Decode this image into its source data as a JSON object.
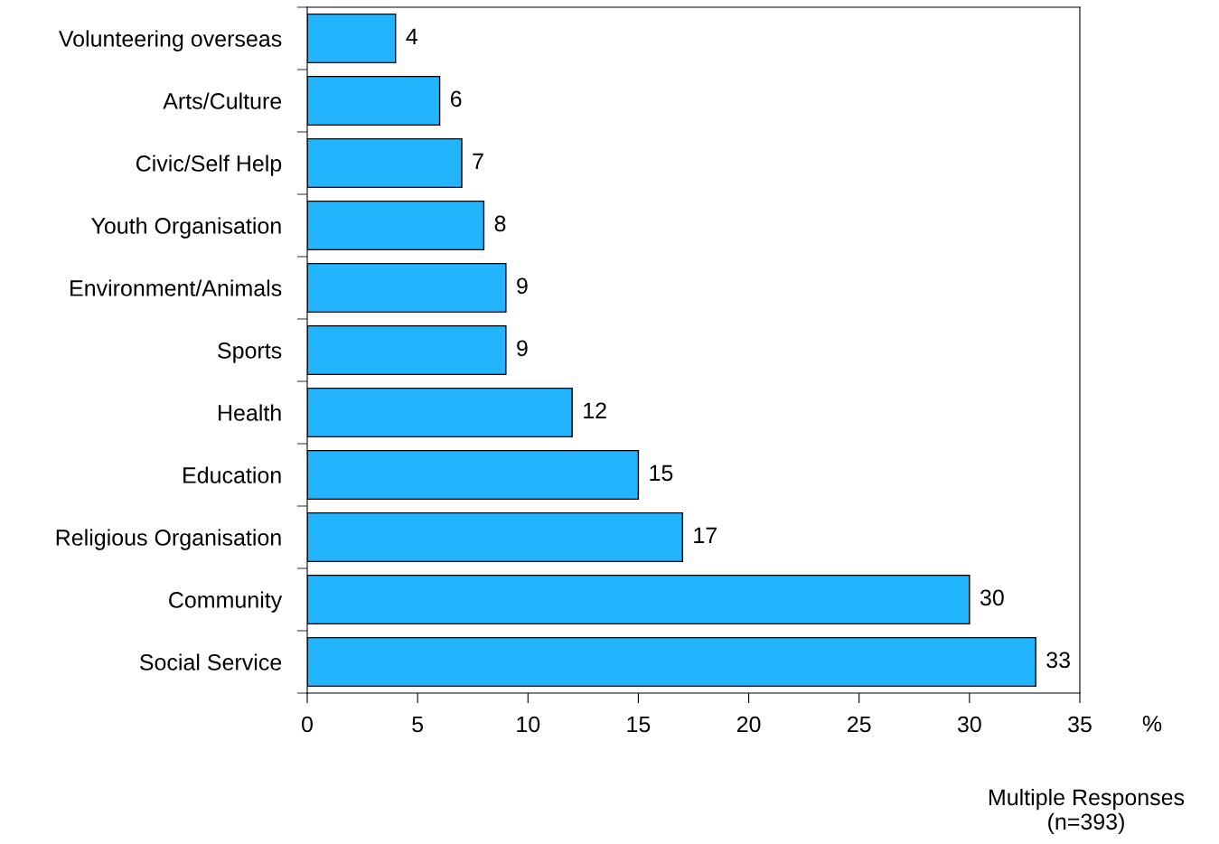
{
  "chart_data": {
    "type": "bar",
    "orientation": "horizontal",
    "categories": [
      "Volunteering overseas",
      "Arts/Culture",
      "Civic/Self Help",
      "Youth Organisation",
      "Environment/Animals",
      "Sports",
      "Health",
      "Education",
      "Religious Organisation",
      "Community",
      "Social Service"
    ],
    "values": [
      4,
      6,
      7,
      8,
      9,
      9,
      12,
      15,
      17,
      30,
      33
    ],
    "color": "#22b4ff",
    "xlim": [
      0,
      35
    ],
    "xticks": [
      0,
      5,
      10,
      15,
      20,
      25,
      30,
      35
    ],
    "xlabel": "%",
    "data_labels": true,
    "grid": false,
    "annotations": [
      "Multiple Responses\n(n=393)"
    ]
  }
}
